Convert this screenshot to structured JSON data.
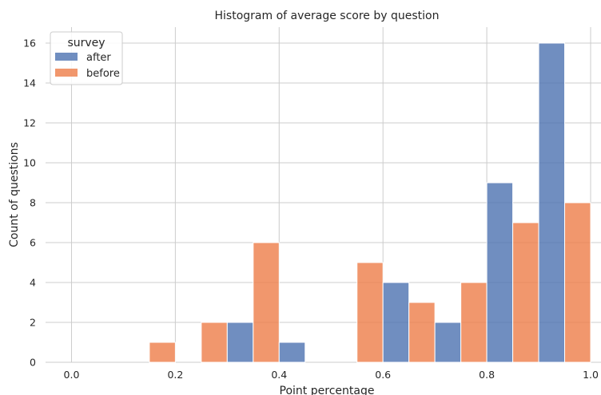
{
  "chart_data": {
    "type": "bar",
    "subtype": "histogram-dodged",
    "title": "Histogram of average score by question",
    "xlabel": "Point percentage",
    "ylabel": "Count of questions",
    "xlim": [
      -0.05,
      1.02
    ],
    "ylim": [
      0,
      16.8
    ],
    "xticks": [
      "0.0",
      "0.2",
      "0.4",
      "0.6",
      "0.8",
      "1.0"
    ],
    "yticks": [
      "0",
      "2",
      "4",
      "6",
      "8",
      "10",
      "12",
      "14",
      "16"
    ],
    "grid": true,
    "legend": {
      "title": "survey",
      "placement": "top-left"
    },
    "bin_width": 0.1,
    "bin_starts": [
      0.0,
      0.1,
      0.2,
      0.3,
      0.4,
      0.5,
      0.6,
      0.7,
      0.8,
      0.9
    ],
    "series": [
      {
        "name": "after",
        "color": "#4c72b0",
        "values": [
          0,
          0,
          0,
          2,
          1,
          0,
          4,
          2,
          9,
          16
        ]
      },
      {
        "name": "before",
        "color": "#ee7d48",
        "values": [
          0,
          1,
          2,
          6,
          0,
          5,
          3,
          4,
          7,
          8
        ]
      }
    ]
  }
}
